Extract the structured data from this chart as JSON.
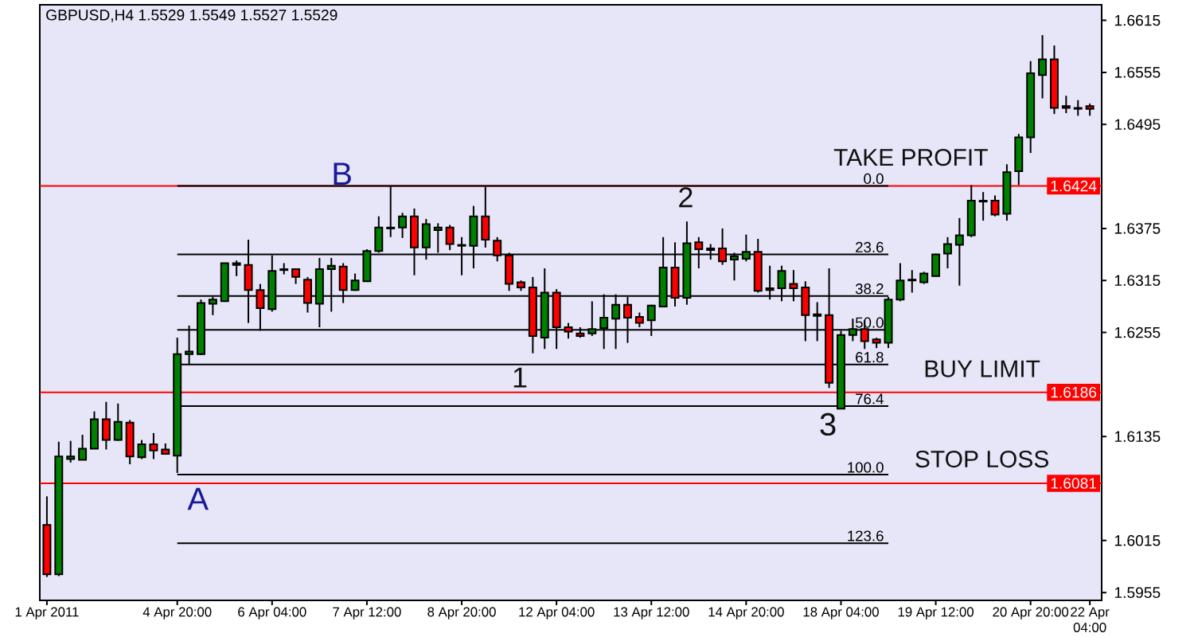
{
  "chart_data": {
    "type": "candlestick",
    "title": "GBPUSD,H4  1.5529 1.5549 1.5527 1.5529",
    "categories": [
      "1 Apr 2011",
      null,
      null,
      null,
      null,
      null,
      null,
      null,
      null,
      null,
      null,
      "4 Apr 20:00",
      null,
      null,
      null,
      null,
      null,
      null,
      null,
      "6 Apr 04:00",
      null,
      null,
      null,
      null,
      null,
      null,
      null,
      "7 Apr 12:00",
      null,
      null,
      null,
      null,
      null,
      null,
      null,
      "8 Apr 20:00",
      null,
      null,
      null,
      null,
      null,
      null,
      null,
      "12 Apr 04:00",
      null,
      null,
      null,
      null,
      null,
      null,
      null,
      "13 Apr 12:00",
      null,
      null,
      null,
      null,
      null,
      null,
      null,
      "14 Apr 20:00",
      null,
      null,
      null,
      null,
      null,
      null,
      null,
      "18 Apr 04:00",
      null,
      null,
      null,
      null,
      null,
      null,
      null,
      "19 Apr 12:00",
      null,
      null,
      null,
      null,
      null,
      null,
      null,
      "20 Apr 20:00",
      null,
      null,
      null,
      null,
      "22 Apr 04:00"
    ],
    "ohlc": [
      [
        1.6033,
        1.6066,
        1.5973,
        1.5976
      ],
      [
        1.5976,
        1.6129,
        1.5974,
        1.6112
      ],
      [
        1.6109,
        1.613,
        1.6105,
        1.6112
      ],
      [
        1.6108,
        1.6137,
        1.6108,
        1.6121
      ],
      [
        1.6121,
        1.6164,
        1.6121,
        1.6155
      ],
      [
        1.6155,
        1.6175,
        1.612,
        1.6131
      ],
      [
        1.6131,
        1.6173,
        1.613,
        1.6152
      ],
      [
        1.6151,
        1.6154,
        1.6103,
        1.6112
      ],
      [
        1.6111,
        1.6131,
        1.6109,
        1.6126
      ],
      [
        1.6126,
        1.6139,
        1.6109,
        1.6119
      ],
      [
        1.612,
        1.6127,
        1.6114,
        1.6115
      ],
      [
        1.6113,
        1.6249,
        1.6093,
        1.623
      ],
      [
        1.623,
        1.6263,
        1.6218,
        1.6233
      ],
      [
        1.623,
        1.6293,
        1.6229,
        1.6289
      ],
      [
        1.6288,
        1.6296,
        1.6275,
        1.6293
      ],
      [
        1.6291,
        1.6335,
        1.6291,
        1.6335
      ],
      [
        1.6333,
        1.6338,
        1.632,
        1.6335
      ],
      [
        1.6333,
        1.6362,
        1.6266,
        1.6304
      ],
      [
        1.6304,
        1.6311,
        1.6257,
        1.6283
      ],
      [
        1.6282,
        1.6344,
        1.6279,
        1.6326
      ],
      [
        1.6327,
        1.6335,
        1.6322,
        1.6328
      ],
      [
        1.6328,
        1.6329,
        1.6311,
        1.6319
      ],
      [
        1.6316,
        1.6319,
        1.6278,
        1.6289
      ],
      [
        1.6288,
        1.6341,
        1.6261,
        1.6328
      ],
      [
        1.6328,
        1.6341,
        1.6279,
        1.6332
      ],
      [
        1.6331,
        1.6335,
        1.6289,
        1.6304
      ],
      [
        1.6304,
        1.6323,
        1.6303,
        1.6315
      ],
      [
        1.6314,
        1.6351,
        1.6314,
        1.6349
      ],
      [
        1.6349,
        1.6389,
        1.6347,
        1.6376
      ],
      [
        1.6375,
        1.6424,
        1.6365,
        1.6376
      ],
      [
        1.6376,
        1.6393,
        1.6364,
        1.6389
      ],
      [
        1.6389,
        1.6398,
        1.6321,
        1.6353
      ],
      [
        1.6353,
        1.6386,
        1.6339,
        1.638
      ],
      [
        1.6373,
        1.6381,
        1.6347,
        1.6376
      ],
      [
        1.6376,
        1.6379,
        1.635,
        1.6357
      ],
      [
        1.6356,
        1.6365,
        1.6321,
        1.6355
      ],
      [
        1.6355,
        1.6401,
        1.6329,
        1.6389
      ],
      [
        1.6389,
        1.6423,
        1.6353,
        1.6362
      ],
      [
        1.6361,
        1.6365,
        1.6337,
        1.6344
      ],
      [
        1.6344,
        1.6347,
        1.6303,
        1.6311
      ],
      [
        1.6313,
        1.6315,
        1.6303,
        1.6307
      ],
      [
        1.6307,
        1.6319,
        1.6231,
        1.6251
      ],
      [
        1.6249,
        1.6329,
        1.6236,
        1.6301
      ],
      [
        1.6301,
        1.6305,
        1.6236,
        1.6261
      ],
      [
        1.6261,
        1.6266,
        1.6248,
        1.6256
      ],
      [
        1.6254,
        1.6261,
        1.6249,
        1.6251
      ],
      [
        1.6254,
        1.6291,
        1.6251,
        1.6259
      ],
      [
        1.626,
        1.6299,
        1.6236,
        1.6272
      ],
      [
        1.6271,
        1.6299,
        1.6236,
        1.6287
      ],
      [
        1.6287,
        1.6296,
        1.6243,
        1.6272
      ],
      [
        1.6273,
        1.6278,
        1.6261,
        1.6266
      ],
      [
        1.6269,
        1.6287,
        1.6251,
        1.6286
      ],
      [
        1.6285,
        1.6365,
        1.6284,
        1.633
      ],
      [
        1.633,
        1.6359,
        1.6285,
        1.6295
      ],
      [
        1.6295,
        1.6383,
        1.6287,
        1.6358
      ],
      [
        1.6359,
        1.6365,
        1.6329,
        1.6351
      ],
      [
        1.635,
        1.6357,
        1.6339,
        1.6352
      ],
      [
        1.6352,
        1.6375,
        1.6333,
        1.6337
      ],
      [
        1.6339,
        1.6347,
        1.6315,
        1.6343
      ],
      [
        1.634,
        1.6368,
        1.6337,
        1.6348
      ],
      [
        1.6348,
        1.6363,
        1.6301,
        1.6303
      ],
      [
        1.6306,
        1.6332,
        1.6293,
        1.6304
      ],
      [
        1.6306,
        1.6332,
        1.6291,
        1.6326
      ],
      [
        1.6311,
        1.6327,
        1.6291,
        1.6306
      ],
      [
        1.6307,
        1.6314,
        1.6245,
        1.6275
      ],
      [
        1.6276,
        1.629,
        1.6245,
        1.6274
      ],
      [
        1.6275,
        1.6329,
        1.6191,
        1.6197
      ],
      [
        1.6167,
        1.6257,
        1.6167,
        1.6252
      ],
      [
        1.6252,
        1.6271,
        1.6245,
        1.6259
      ],
      [
        1.6259,
        1.6269,
        1.6236,
        1.6245
      ],
      [
        1.6247,
        1.6249,
        1.6237,
        1.6243
      ],
      [
        1.6243,
        1.6296,
        1.6237,
        1.6293
      ],
      [
        1.6293,
        1.6335,
        1.6291,
        1.6315
      ],
      [
        1.6315,
        1.6327,
        1.6301,
        1.6316
      ],
      [
        1.6313,
        1.6325,
        1.6311,
        1.6323
      ],
      [
        1.632,
        1.6346,
        1.632,
        1.6345
      ],
      [
        1.6346,
        1.6365,
        1.6329,
        1.6357
      ],
      [
        1.6356,
        1.6387,
        1.6309,
        1.6367
      ],
      [
        1.6367,
        1.6425,
        1.6365,
        1.6407
      ],
      [
        1.6406,
        1.6417,
        1.6384,
        1.6407
      ],
      [
        1.6407,
        1.6413,
        1.6389,
        1.6391
      ],
      [
        1.6392,
        1.6449,
        1.6384,
        1.644
      ],
      [
        1.6441,
        1.6484,
        1.6425,
        1.648
      ],
      [
        1.648,
        1.6568,
        1.6462,
        1.6554
      ],
      [
        1.6552,
        1.6598,
        1.6525,
        1.657
      ],
      [
        1.657,
        1.6586,
        1.6507,
        1.6514
      ],
      [
        1.6516,
        1.6528,
        1.6508,
        1.6514
      ],
      [
        1.6514,
        1.6523,
        1.6505,
        1.6513
      ],
      [
        1.6516,
        1.6519,
        1.6505,
        1.6513
      ]
    ],
    "ylim": [
      1.5946,
      1.6633
    ],
    "yticks": [
      1.6615,
      1.6555,
      1.6495,
      1.6375,
      1.6315,
      1.6255,
      1.6135,
      1.6015,
      1.5955
    ],
    "ref_lines": [
      {
        "axis": "y",
        "value": 1.6424,
        "color": "#000000"
      },
      {
        "axis": "y",
        "value": 1.6345,
        "color": "#000000"
      },
      {
        "axis": "y",
        "value": 1.6297,
        "color": "#000000"
      },
      {
        "axis": "y",
        "value": 1.6258,
        "color": "#000000"
      },
      {
        "axis": "y",
        "value": 1.6218,
        "color": "#000000"
      },
      {
        "axis": "y",
        "value": 1.617,
        "color": "#000000"
      },
      {
        "axis": "y",
        "value": 1.6091,
        "color": "#000000"
      },
      {
        "axis": "y",
        "value": 1.6012,
        "color": "#000000"
      },
      {
        "axis": "y",
        "value": 1.6424,
        "label": "1.6424",
        "color": "#ff0000"
      },
      {
        "axis": "y",
        "value": 1.6186,
        "label": "1.6186",
        "color": "#ff0000"
      },
      {
        "axis": "y",
        "value": 1.6081,
        "label": "1.6081",
        "color": "#ff0000"
      }
    ],
    "annotations": [
      "A",
      "B",
      "1",
      "2",
      "3",
      "TAKE PROFIT",
      "BUY LIMIT",
      "STOP LOSS",
      {
        "text": "0.0",
        "y": 1.6424
      },
      {
        "text": "23.6",
        "y": 1.6345
      },
      {
        "text": "38.2",
        "y": 1.6297
      },
      {
        "text": "50.0",
        "y": 1.6258
      },
      {
        "text": "61.8",
        "y": 1.6218
      },
      {
        "text": "76.4",
        "y": 1.617
      },
      {
        "text": "100.0",
        "y": 1.6091
      },
      {
        "text": "123.6",
        "y": 1.6012
      }
    ]
  }
}
